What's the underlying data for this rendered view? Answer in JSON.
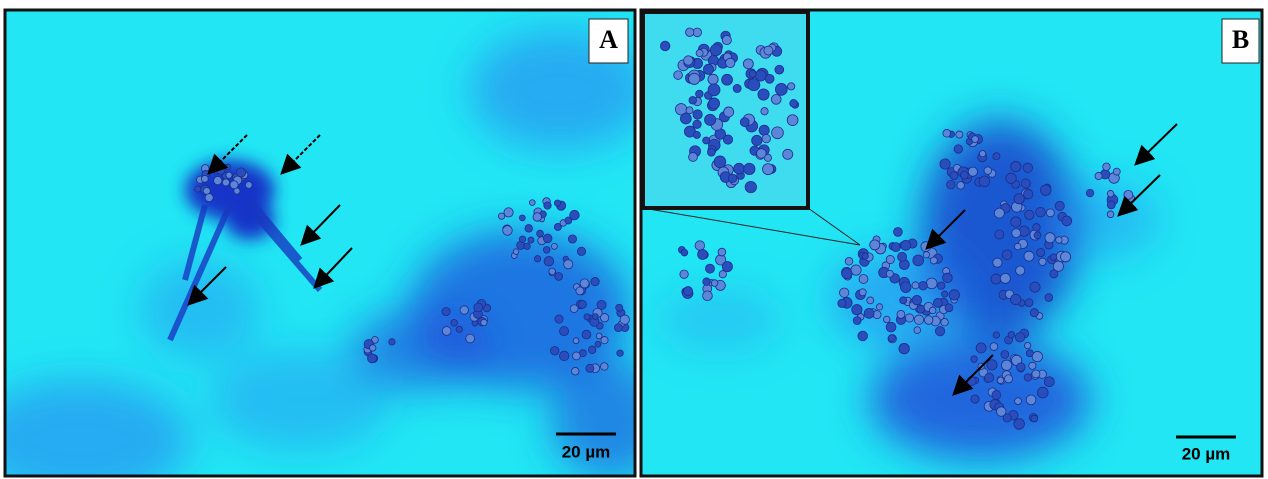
{
  "panels": [
    {
      "label": "A",
      "scale_bar": "20 µm"
    },
    {
      "label": "B",
      "scale_bar": "20 µm"
    }
  ]
}
